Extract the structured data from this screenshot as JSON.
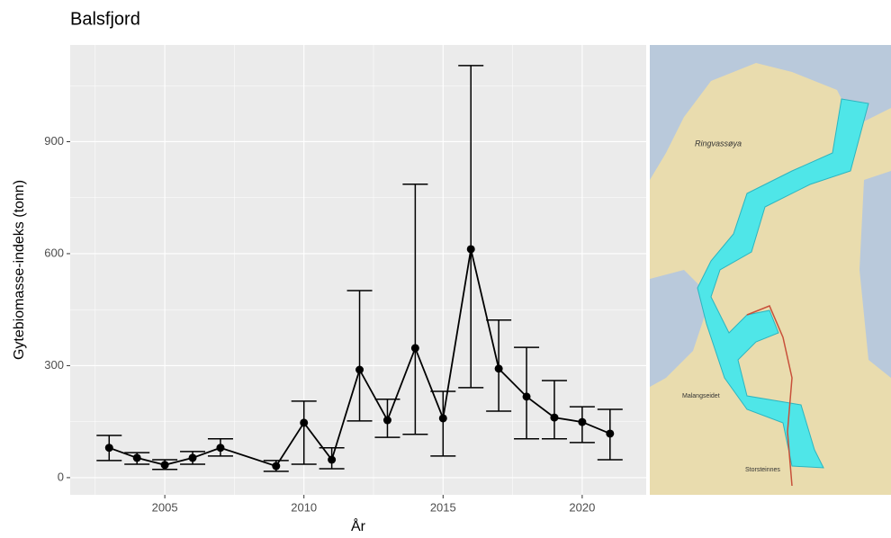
{
  "chart_data": {
    "type": "line",
    "title": "Balsfjord",
    "x_label": "År",
    "y_label": "Gytebiomasse-indeks (tonn)",
    "x": [
      2003,
      2004,
      2005,
      2006,
      2007,
      2009,
      2010,
      2011,
      2012,
      2013,
      2014,
      2015,
      2016,
      2017,
      2018,
      2019,
      2020,
      2021
    ],
    "series": [
      {
        "color": "#000000",
        "values": [
          80,
          53,
          34,
          53,
          80,
          31,
          147,
          48,
          289,
          154,
          347,
          159,
          612,
          292,
          217,
          161,
          149,
          118
        ],
        "lower": [
          46,
          36,
          22,
          36,
          58,
          17,
          36,
          24,
          152,
          108,
          116,
          58,
          241,
          178,
          104,
          104,
          94,
          48
        ],
        "upper": [
          113,
          67,
          48,
          70,
          104,
          46,
          205,
          80,
          501,
          210,
          786,
          231,
          1104,
          422,
          349,
          260,
          190,
          183
        ]
      }
    ],
    "xlim": [
      2001.6,
      2022.3
    ],
    "ylim": [
      -46,
      1159
    ],
    "xticks": [
      2005,
      2010,
      2015,
      2020
    ],
    "yticks": [
      0,
      300,
      600,
      900
    ],
    "grid": true,
    "minor_grid": true,
    "map_labels": [
      "Ringvassøya",
      "Malangseidet",
      "Storsteinnes"
    ]
  }
}
